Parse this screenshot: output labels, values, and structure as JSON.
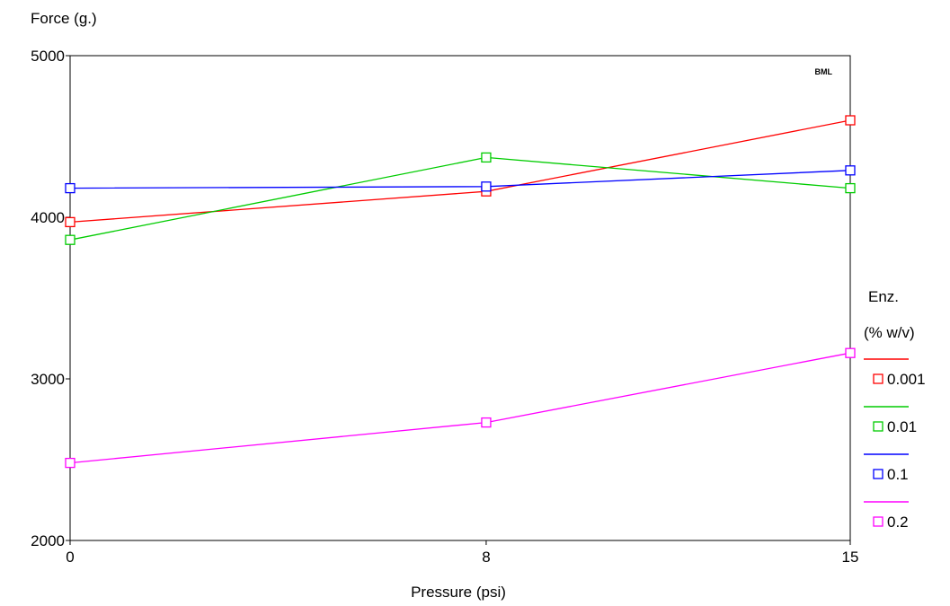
{
  "chart_data": {
    "type": "line",
    "title": "",
    "xlabel": "Pressure (psi)",
    "ylabel": "Force (g.)",
    "xlim": [
      0,
      15
    ],
    "ylim": [
      2000,
      5000
    ],
    "x": [
      0,
      8,
      15
    ],
    "x_ticks": [
      0,
      8,
      15
    ],
    "y_ticks": [
      2000,
      3000,
      4000,
      5000
    ],
    "corner_mark": "BML",
    "legend": {
      "title_line1": "Enz.",
      "title_line2": "(% w/v)",
      "placement": "right"
    },
    "series": [
      {
        "name": "0.001",
        "color": "#ff0000",
        "values": [
          3970,
          4160,
          4600
        ]
      },
      {
        "name": "0.01",
        "color": "#00cc00",
        "values": [
          3860,
          4370,
          4180
        ]
      },
      {
        "name": "0.1",
        "color": "#0000ff",
        "values": [
          4180,
          4190,
          4290
        ]
      },
      {
        "name": "0.2",
        "color": "#ff00ff",
        "values": [
          2480,
          2730,
          3160
        ]
      }
    ],
    "marker": "open-square",
    "grid": false
  }
}
